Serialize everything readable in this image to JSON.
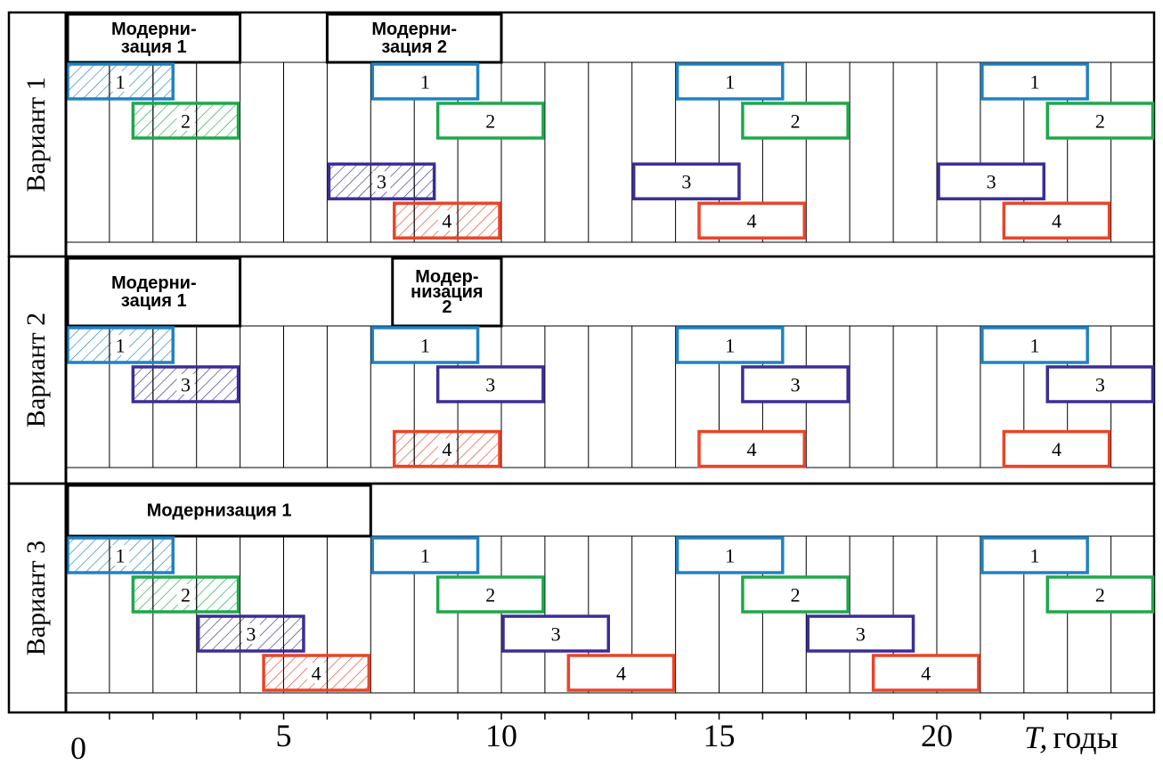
{
  "colors": {
    "1": "#1f82c4",
    "2": "#1ea84a",
    "3": "#3a2e96",
    "4": "#ea4428",
    "frame": "#000000"
  },
  "axis": {
    "ticks": [
      0,
      5,
      10,
      15,
      20
    ],
    "label_italic": "T,",
    "label_rest": "годы"
  },
  "chart_data": {
    "type": "gantt",
    "x_range": [
      0,
      25
    ],
    "panels": [
      {
        "label": "Вариант 1",
        "modernizations": [
          {
            "lines": [
              "Модерни-",
              "зация 1"
            ],
            "start": 0,
            "end": 4
          },
          {
            "lines": [
              "Модерни-",
              "зация 2"
            ],
            "start": 6,
            "end": 10
          }
        ],
        "bars": [
          {
            "label": "1",
            "start": 0,
            "end": 2.5,
            "row": 0,
            "hatched": true
          },
          {
            "label": "2",
            "start": 1.5,
            "end": 4,
            "row": 1,
            "hatched": true
          },
          {
            "label": "1",
            "start": 7,
            "end": 9.5,
            "row": 0,
            "hatched": false
          },
          {
            "label": "2",
            "start": 8.5,
            "end": 11,
            "row": 1,
            "hatched": false
          },
          {
            "label": "3",
            "start": 6,
            "end": 8.5,
            "row": 2.55,
            "hatched": true
          },
          {
            "label": "4",
            "start": 7.5,
            "end": 10,
            "row": 3.55,
            "hatched": true
          },
          {
            "label": "1",
            "start": 14,
            "end": 16.5,
            "row": 0,
            "hatched": false
          },
          {
            "label": "2",
            "start": 15.5,
            "end": 18,
            "row": 1,
            "hatched": false
          },
          {
            "label": "3",
            "start": 13,
            "end": 15.5,
            "row": 2.55,
            "hatched": false
          },
          {
            "label": "4",
            "start": 14.5,
            "end": 17,
            "row": 3.55,
            "hatched": false
          },
          {
            "label": "1",
            "start": 21,
            "end": 23.5,
            "row": 0,
            "hatched": false
          },
          {
            "label": "2",
            "start": 22.5,
            "end": 25,
            "row": 1,
            "hatched": false
          },
          {
            "label": "3",
            "start": 20,
            "end": 22.5,
            "row": 2.55,
            "hatched": false
          },
          {
            "label": "4",
            "start": 21.5,
            "end": 24,
            "row": 3.55,
            "hatched": false
          }
        ]
      },
      {
        "label": "Вариант 2",
        "modernizations": [
          {
            "lines": [
              "Модерни-",
              "зация 1"
            ],
            "start": 0,
            "end": 4
          },
          {
            "lines": [
              "Модер-",
              "низация",
              "2"
            ],
            "start": 7.5,
            "end": 10
          }
        ],
        "bars": [
          {
            "label": "1",
            "start": 0,
            "end": 2.5,
            "row": 0,
            "hatched": true
          },
          {
            "label": "3",
            "start": 1.5,
            "end": 4,
            "row": 1,
            "hatched": true
          },
          {
            "label": "1",
            "start": 7,
            "end": 9.5,
            "row": 0,
            "hatched": false
          },
          {
            "label": "3",
            "start": 8.5,
            "end": 11,
            "row": 1,
            "hatched": false
          },
          {
            "label": "4",
            "start": 7.5,
            "end": 10,
            "row": 2.65,
            "hatched": true
          },
          {
            "label": "1",
            "start": 14,
            "end": 16.5,
            "row": 0,
            "hatched": false
          },
          {
            "label": "3",
            "start": 15.5,
            "end": 18,
            "row": 1,
            "hatched": false
          },
          {
            "label": "4",
            "start": 14.5,
            "end": 17,
            "row": 2.65,
            "hatched": false
          },
          {
            "label": "1",
            "start": 21,
            "end": 23.5,
            "row": 0,
            "hatched": false
          },
          {
            "label": "3",
            "start": 22.5,
            "end": 25,
            "row": 1,
            "hatched": false
          },
          {
            "label": "4",
            "start": 21.5,
            "end": 24,
            "row": 2.65,
            "hatched": false
          }
        ]
      },
      {
        "label": "Вариант 3",
        "modernizations": [
          {
            "lines": [
              "Модернизация  1"
            ],
            "start": 0,
            "end": 7
          }
        ],
        "bars": [
          {
            "label": "1",
            "start": 0,
            "end": 2.5,
            "row": 0,
            "hatched": true
          },
          {
            "label": "2",
            "start": 1.5,
            "end": 4,
            "row": 1,
            "hatched": true
          },
          {
            "label": "3",
            "start": 3,
            "end": 5.5,
            "row": 2,
            "hatched": true
          },
          {
            "label": "4",
            "start": 4.5,
            "end": 7,
            "row": 3,
            "hatched": true
          },
          {
            "label": "1",
            "start": 7,
            "end": 9.5,
            "row": 0,
            "hatched": false
          },
          {
            "label": "2",
            "start": 8.5,
            "end": 11,
            "row": 1,
            "hatched": false
          },
          {
            "label": "3",
            "start": 10,
            "end": 12.5,
            "row": 2,
            "hatched": false
          },
          {
            "label": "4",
            "start": 11.5,
            "end": 14,
            "row": 3,
            "hatched": false
          },
          {
            "label": "1",
            "start": 14,
            "end": 16.5,
            "row": 0,
            "hatched": false
          },
          {
            "label": "2",
            "start": 15.5,
            "end": 18,
            "row": 1,
            "hatched": false
          },
          {
            "label": "3",
            "start": 17,
            "end": 19.5,
            "row": 2,
            "hatched": false
          },
          {
            "label": "4",
            "start": 18.5,
            "end": 21,
            "row": 3,
            "hatched": false
          },
          {
            "label": "1",
            "start": 21,
            "end": 23.5,
            "row": 0,
            "hatched": false
          },
          {
            "label": "2",
            "start": 22.5,
            "end": 25,
            "row": 1,
            "hatched": false
          }
        ]
      }
    ]
  }
}
